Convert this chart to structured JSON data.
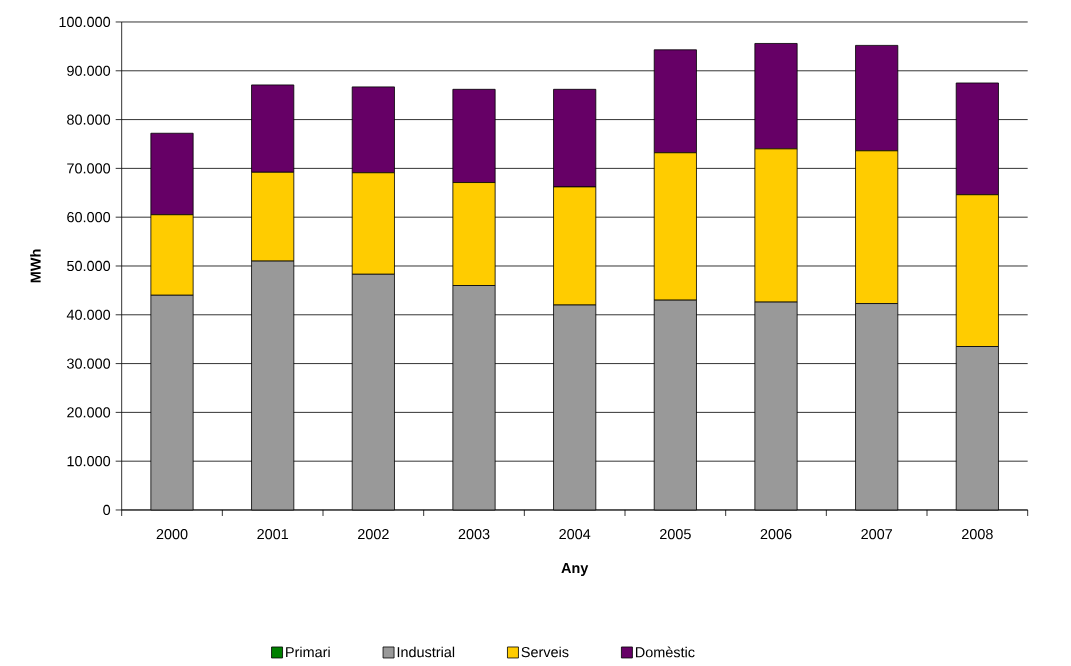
{
  "chart_data": {
    "type": "bar",
    "stacked": true,
    "xlabel": "Any",
    "ylabel": "MWh",
    "categories": [
      "2000",
      "2001",
      "2002",
      "2003",
      "2004",
      "2005",
      "2006",
      "2007",
      "2008"
    ],
    "series": [
      {
        "name": "Primari",
        "color": "#008000",
        "values": [
          0,
          0,
          0,
          0,
          0,
          0,
          0,
          0,
          0
        ]
      },
      {
        "name": "Industrial",
        "color": "#999999",
        "values": [
          44000,
          51000,
          48300,
          46000,
          42000,
          43000,
          42600,
          42300,
          33500
        ]
      },
      {
        "name": "Serveis",
        "color": "#ffcc00",
        "values": [
          16500,
          18200,
          20800,
          21100,
          24200,
          30200,
          31400,
          31300,
          31100
        ]
      },
      {
        "name": "Domèstic",
        "color": "#660066",
        "values": [
          16700,
          17900,
          17600,
          19100,
          20000,
          21100,
          21600,
          21600,
          22900
        ]
      }
    ],
    "ylim": [
      0,
      100000
    ],
    "yticks": [
      0,
      {
        "value": 10000,
        "label": "10.000"
      },
      {
        "value": 20000,
        "label": "20.000"
      },
      {
        "value": 30000,
        "label": "30.000"
      },
      {
        "value": 40000,
        "label": "40.000"
      },
      {
        "value": 50000,
        "label": "50.000"
      },
      {
        "value": 60000,
        "label": "60.000"
      },
      {
        "value": 70000,
        "label": "70.000"
      },
      {
        "value": 80000,
        "label": "80.000"
      },
      {
        "value": 90000,
        "label": "90.000"
      },
      {
        "value": 100000,
        "label": "100.000"
      }
    ],
    "grid": "y",
    "legend": "bottom"
  }
}
